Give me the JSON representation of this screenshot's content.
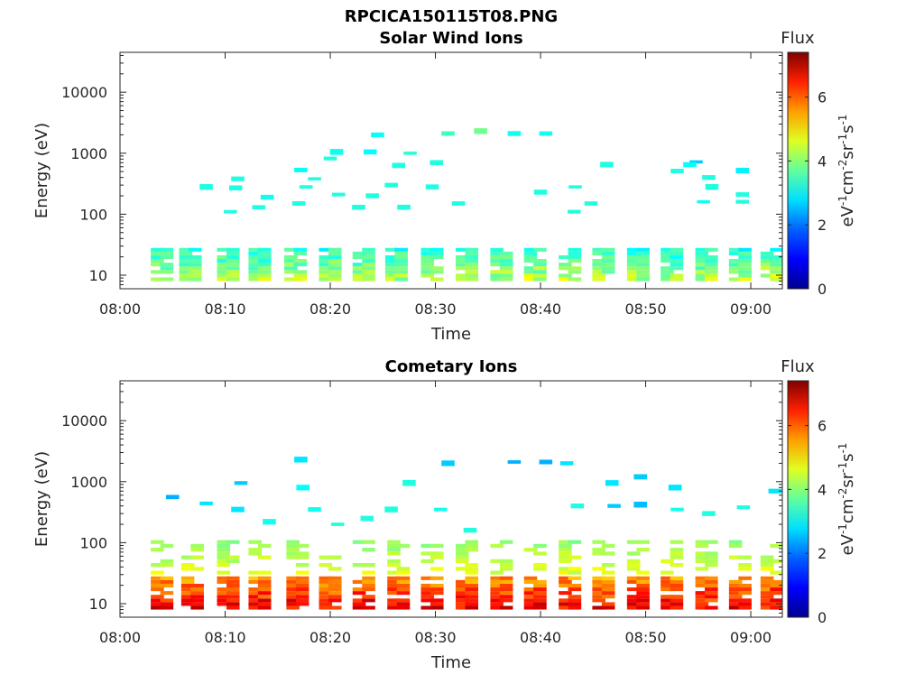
{
  "figure_title": "RPCICA150115T08.PNG",
  "colormap": [
    "#00008f",
    "#0000ff",
    "#0080ff",
    "#00ffff",
    "#80ff80",
    "#ffff00",
    "#ff8000",
    "#ff0000",
    "#800000"
  ],
  "chart_data": [
    {
      "type": "heatmap",
      "title": "Solar Wind Ions",
      "xlabel": "Time",
      "ylabel": "Energy (eV)",
      "y_scale": "log",
      "xlim": [
        "08:00",
        "09:03"
      ],
      "ylim": [
        6,
        45000
      ],
      "x_ticks": [
        "08:00",
        "08:10",
        "08:20",
        "08:30",
        "08:40",
        "08:50",
        "09:00"
      ],
      "y_ticks": [
        10,
        100,
        1000,
        10000
      ],
      "y_tick_labels": [
        "10",
        "100",
        "1000",
        "10000"
      ],
      "colorbar": {
        "label": "Flux",
        "unit": "eV-1cm-2sr-1s-1",
        "range": [
          0,
          7.4
        ],
        "ticks": [
          0,
          2,
          4,
          6
        ]
      },
      "scan_times_min": [
        4,
        6.7,
        10.3,
        13.3,
        16.7,
        20,
        23.2,
        26.3,
        29.7,
        33,
        36.3,
        39.5,
        42.8,
        46,
        49.3,
        52.5,
        55.8,
        59,
        62
      ],
      "low_energy_band": {
        "energy_eV": [
          8,
          28
        ],
        "flux_range": [
          2.5,
          4.8
        ]
      },
      "scattered_points": [
        {
          "t": 8.2,
          "e": 280,
          "f": 3.0
        },
        {
          "t": 10.5,
          "e": 110,
          "f": 3.0
        },
        {
          "t": 11.2,
          "e": 380,
          "f": 3.0
        },
        {
          "t": 11,
          "e": 270,
          "f": 3.0
        },
        {
          "t": 14,
          "e": 190,
          "f": 2.9
        },
        {
          "t": 13.2,
          "e": 130,
          "f": 3.0
        },
        {
          "t": 17,
          "e": 150,
          "f": 3.0
        },
        {
          "t": 17.2,
          "e": 530,
          "f": 2.8
        },
        {
          "t": 17.7,
          "e": 280,
          "f": 3.0
        },
        {
          "t": 18.5,
          "e": 380,
          "f": 3.0
        },
        {
          "t": 20,
          "e": 820,
          "f": 3.0
        },
        {
          "t": 20.6,
          "e": 1050,
          "f": 2.9
        },
        {
          "t": 20.8,
          "e": 210,
          "f": 3.0
        },
        {
          "t": 22.7,
          "e": 130,
          "f": 3.0
        },
        {
          "t": 24.5,
          "e": 2000,
          "f": 2.8
        },
        {
          "t": 23.8,
          "e": 1050,
          "f": 2.8
        },
        {
          "t": 24,
          "e": 200,
          "f": 3.0
        },
        {
          "t": 25.8,
          "e": 300,
          "f": 3.0
        },
        {
          "t": 26.5,
          "e": 630,
          "f": 3.0
        },
        {
          "t": 27,
          "e": 130,
          "f": 3.0
        },
        {
          "t": 27.6,
          "e": 1000,
          "f": 3.1
        },
        {
          "t": 29.7,
          "e": 280,
          "f": 3.0
        },
        {
          "t": 30.1,
          "e": 700,
          "f": 3.0
        },
        {
          "t": 31.2,
          "e": 2100,
          "f": 3.2
        },
        {
          "t": 32.2,
          "e": 150,
          "f": 3.0
        },
        {
          "t": 34.3,
          "e": 2300,
          "f": 3.6
        },
        {
          "t": 37.5,
          "e": 2100,
          "f": 2.9
        },
        {
          "t": 40.5,
          "e": 2100,
          "f": 2.9
        },
        {
          "t": 40,
          "e": 230,
          "f": 3.0
        },
        {
          "t": 43.3,
          "e": 280,
          "f": 3.0
        },
        {
          "t": 43.2,
          "e": 110,
          "f": 3.0
        },
        {
          "t": 44.8,
          "e": 150,
          "f": 3.0
        },
        {
          "t": 46.3,
          "e": 650,
          "f": 3.0
        },
        {
          "t": 53,
          "e": 510,
          "f": 3.0
        },
        {
          "t": 54.8,
          "e": 720,
          "f": 2.4
        },
        {
          "t": 54.2,
          "e": 650,
          "f": 2.8
        },
        {
          "t": 55.5,
          "e": 160,
          "f": 2.9
        },
        {
          "t": 56,
          "e": 400,
          "f": 3.0
        },
        {
          "t": 56.3,
          "e": 280,
          "f": 3.0
        },
        {
          "t": 59.2,
          "e": 520,
          "f": 2.7
        },
        {
          "t": 59.2,
          "e": 210,
          "f": 3.0
        },
        {
          "t": 59.2,
          "e": 160,
          "f": 3.0
        }
      ]
    },
    {
      "type": "heatmap",
      "title": "Cometary Ions",
      "xlabel": "Time",
      "ylabel": "Energy (eV)",
      "y_scale": "log",
      "xlim": [
        "08:00",
        "09:03"
      ],
      "ylim": [
        6,
        45000
      ],
      "x_ticks": [
        "08:00",
        "08:10",
        "08:20",
        "08:30",
        "08:40",
        "08:50",
        "09:00"
      ],
      "y_ticks": [
        10,
        100,
        1000,
        10000
      ],
      "y_tick_labels": [
        "10",
        "100",
        "1000",
        "10000"
      ],
      "colorbar": {
        "label": "Flux",
        "unit": "eV-1cm-2sr-1s-1",
        "range": [
          0,
          7.4
        ],
        "ticks": [
          0,
          2,
          4,
          6
        ]
      },
      "scan_times_min": [
        4,
        6.9,
        10.3,
        13.3,
        16.9,
        20,
        23.2,
        26.5,
        29.7,
        33,
        36.3,
        39.5,
        42.8,
        46,
        49.3,
        52.5,
        55.8,
        59,
        62
      ],
      "low_energy_band": {
        "energy_eV": [
          8,
          28
        ],
        "flux_range": [
          4.8,
          7.4
        ]
      },
      "mid_energy_band": {
        "energy_eV": [
          30,
          110
        ],
        "flux_range": [
          3.5,
          4.8
        ]
      },
      "scattered_points": [
        {
          "t": 5,
          "e": 560,
          "f": 2.2
        },
        {
          "t": 8.2,
          "e": 440,
          "f": 2.6
        },
        {
          "t": 11.5,
          "e": 950,
          "f": 2.4
        },
        {
          "t": 11.2,
          "e": 350,
          "f": 2.6
        },
        {
          "t": 14.2,
          "e": 220,
          "f": 2.9
        },
        {
          "t": 17.2,
          "e": 2300,
          "f": 2.6
        },
        {
          "t": 17.4,
          "e": 800,
          "f": 2.8
        },
        {
          "t": 18.5,
          "e": 350,
          "f": 2.9
        },
        {
          "t": 20.7,
          "e": 200,
          "f": 3.0
        },
        {
          "t": 23.5,
          "e": 250,
          "f": 3.0
        },
        {
          "t": 25.8,
          "e": 350,
          "f": 3.0
        },
        {
          "t": 27.5,
          "e": 950,
          "f": 3.0
        },
        {
          "t": 31.2,
          "e": 2000,
          "f": 2.4
        },
        {
          "t": 30.5,
          "e": 350,
          "f": 2.9
        },
        {
          "t": 33.3,
          "e": 160,
          "f": 3.0
        },
        {
          "t": 37.5,
          "e": 2100,
          "f": 2.2
        },
        {
          "t": 40.5,
          "e": 2100,
          "f": 2.2
        },
        {
          "t": 42.5,
          "e": 2000,
          "f": 2.6
        },
        {
          "t": 43.5,
          "e": 400,
          "f": 3.0
        },
        {
          "t": 46.8,
          "e": 950,
          "f": 2.6
        },
        {
          "t": 47,
          "e": 400,
          "f": 2.4
        },
        {
          "t": 49.5,
          "e": 1200,
          "f": 2.4
        },
        {
          "t": 49.5,
          "e": 420,
          "f": 2.3
        },
        {
          "t": 52.8,
          "e": 800,
          "f": 2.6
        },
        {
          "t": 53,
          "e": 350,
          "f": 2.9
        },
        {
          "t": 56,
          "e": 300,
          "f": 3.0
        },
        {
          "t": 59.3,
          "e": 380,
          "f": 3.0
        },
        {
          "t": 62.3,
          "e": 700,
          "f": 2.6
        }
      ]
    }
  ]
}
